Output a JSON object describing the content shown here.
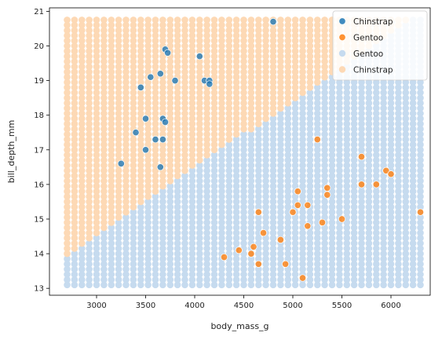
{
  "chart_data": {
    "type": "scatter",
    "xlabel": "body_mass_g",
    "ylabel": "bill_depth_mm",
    "xlim": [
      2520,
      6400
    ],
    "ylim": [
      12.8,
      21.1
    ],
    "xticks": [
      3000,
      3500,
      4000,
      4500,
      5000,
      5500,
      6000
    ],
    "yticks": [
      13,
      14,
      15,
      16,
      17,
      18,
      19,
      20,
      21
    ],
    "grid": false,
    "legend_position": "top-right",
    "background_grid": {
      "x_start": 2700,
      "x_end": 6300,
      "x_step": 75,
      "y_start": 13.1,
      "y_end": 20.8,
      "y_step": 0.15,
      "boundary": {
        "x1": 2700,
        "y1": 13.9,
        "x2": 6300,
        "y2": 21.0
      },
      "above_class": "Chinstrap",
      "below_class": "Gentoo"
    },
    "series": [
      {
        "name": "Chinstrap",
        "kind": "points",
        "color": "#1f77b4",
        "points": [
          [
            3250,
            16.6
          ],
          [
            3400,
            17.5
          ],
          [
            3450,
            18.8
          ],
          [
            3500,
            17.9
          ],
          [
            3500,
            17.0
          ],
          [
            3550,
            19.1
          ],
          [
            3600,
            17.3
          ],
          [
            3650,
            19.2
          ],
          [
            3650,
            16.5
          ],
          [
            3675,
            17.9
          ],
          [
            3675,
            17.3
          ],
          [
            3700,
            19.9
          ],
          [
            3700,
            17.8
          ],
          [
            3725,
            19.8
          ],
          [
            3800,
            19.0
          ],
          [
            4050,
            19.7
          ],
          [
            4100,
            19.0
          ],
          [
            4150,
            19.0
          ],
          [
            4150,
            18.9
          ],
          [
            4800,
            20.7
          ]
        ]
      },
      {
        "name": "Gentoo",
        "kind": "points",
        "color": "#ff7f0e",
        "points": [
          [
            4300,
            13.9
          ],
          [
            4450,
            14.1
          ],
          [
            4575,
            14.0
          ],
          [
            4600,
            14.2
          ],
          [
            4650,
            13.7
          ],
          [
            4650,
            15.2
          ],
          [
            4700,
            14.6
          ],
          [
            4875,
            14.4
          ],
          [
            4925,
            13.7
          ],
          [
            5000,
            15.2
          ],
          [
            5050,
            15.8
          ],
          [
            5050,
            15.4
          ],
          [
            5100,
            13.3
          ],
          [
            5150,
            15.4
          ],
          [
            5150,
            14.8
          ],
          [
            5250,
            17.3
          ],
          [
            5300,
            14.9
          ],
          [
            5350,
            15.9
          ],
          [
            5350,
            15.7
          ],
          [
            5500,
            15.0
          ],
          [
            5700,
            16.8
          ],
          [
            5700,
            16.0
          ],
          [
            5850,
            16.0
          ],
          [
            5950,
            16.4
          ],
          [
            6000,
            16.3
          ],
          [
            6300,
            15.2
          ]
        ]
      },
      {
        "name": "Gentoo",
        "kind": "region",
        "color": "#c6dbef"
      },
      {
        "name": "Chinstrap",
        "kind": "region",
        "color": "#fdd9b5"
      }
    ]
  }
}
